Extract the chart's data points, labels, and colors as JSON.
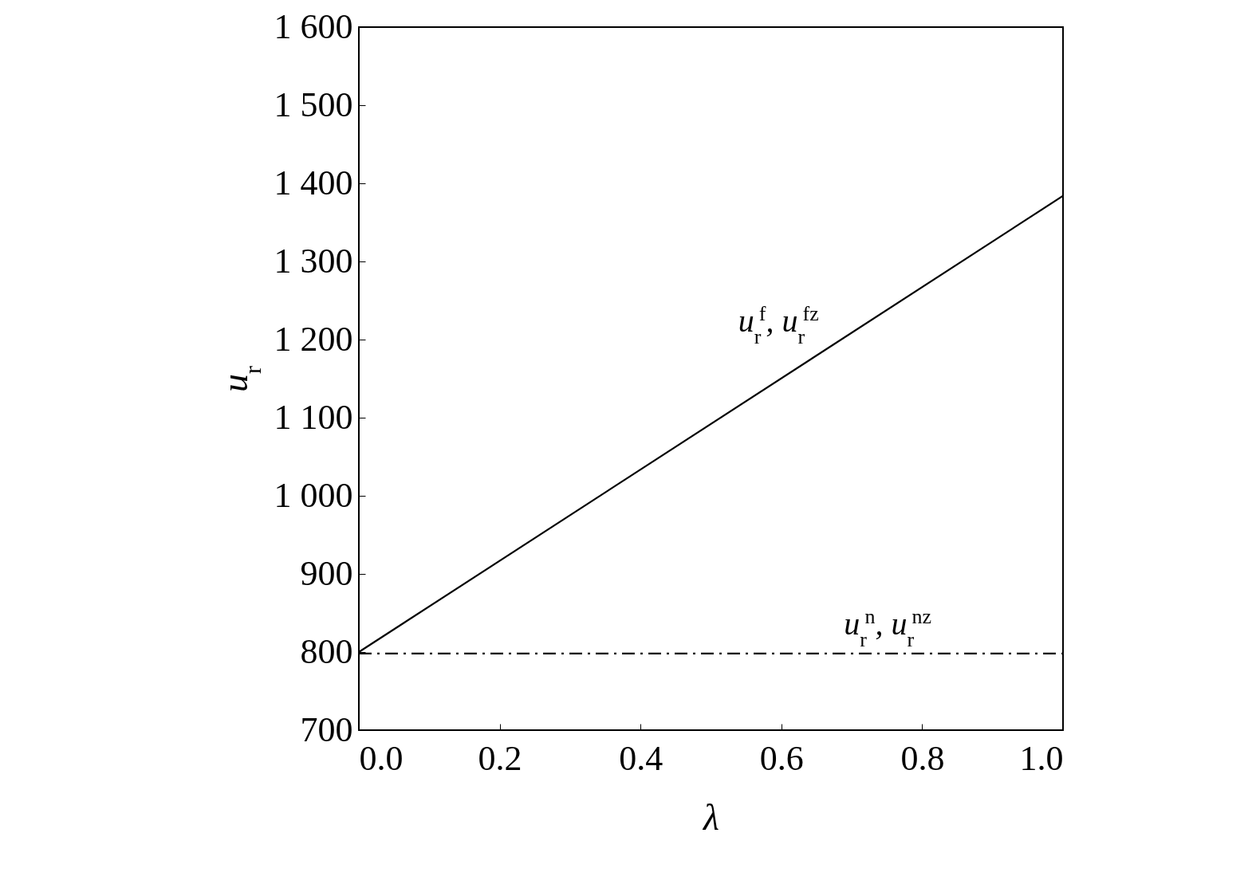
{
  "chart_data": {
    "type": "line",
    "xlabel": "λ",
    "ylabel": "u$_{r}$",
    "x": [
      0,
      1
    ],
    "xlim": [
      0,
      1
    ],
    "ylim": [
      700,
      1600
    ],
    "xticks": [
      {
        "value": 0,
        "label": "0.0"
      },
      0.2,
      0.4,
      0.6,
      0.8,
      {
        "value": 1,
        "label": "1.0"
      }
    ],
    "yticks": [
      700,
      800,
      900,
      {
        "value": 1000,
        "label": "1 000"
      },
      {
        "value": 1100,
        "label": "1 100"
      },
      {
        "value": 1200,
        "label": "1 200"
      },
      {
        "value": 1300,
        "label": "1 300"
      },
      {
        "value": 1400,
        "label": "1 400"
      },
      {
        "value": 1500,
        "label": "1 500"
      },
      {
        "value": 1600,
        "label": "1 600"
      }
    ],
    "series": [
      {
        "name": "u$_{r}$$^{f}$, u$_{r}$$^{fz}$",
        "values": [
          800,
          1384
        ],
        "color": "#000000",
        "line_style": "solid"
      },
      {
        "name": "u$_{r}$$^{n}$, u$_{r}$$^{nz}$",
        "values": [
          798,
          798
        ],
        "color": "#000000",
        "line_style": "dashed"
      }
    ]
  }
}
